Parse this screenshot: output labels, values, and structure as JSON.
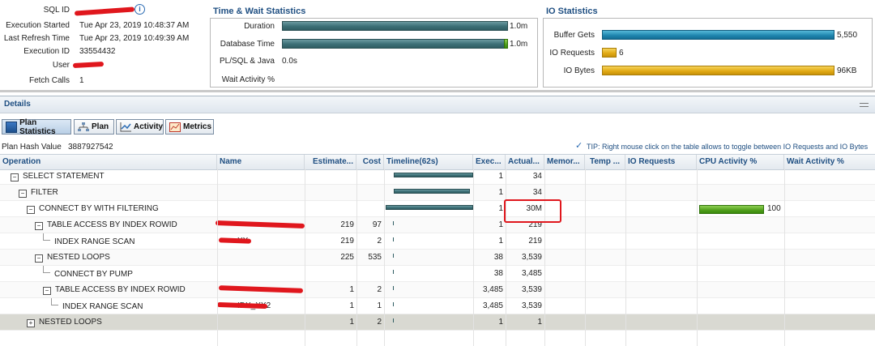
{
  "summary": {
    "sql_id_label": "SQL ID",
    "exec_started_label": "Execution Started",
    "exec_started": "Tue Apr 23, 2019 10:48:37 AM",
    "last_refresh_label": "Last Refresh Time",
    "last_refresh": "Tue Apr 23, 2019 10:49:39 AM",
    "exec_id_label": "Execution ID",
    "exec_id": "33554432",
    "user_label": "User",
    "fetch_calls_label": "Fetch Calls",
    "fetch_calls": "1"
  },
  "time_wait": {
    "title": "Time & Wait Statistics",
    "duration_label": "Duration",
    "duration_value": "1.0m",
    "db_time_label": "Database Time",
    "db_time_value": "1.0m",
    "plsql_label": "PL/SQL & Java",
    "plsql_value": "0.0s",
    "wait_label": "Wait Activity %"
  },
  "io": {
    "title": "IO Statistics",
    "buffer_gets_label": "Buffer Gets",
    "buffer_gets_value": "5,550",
    "io_requests_label": "IO Requests",
    "io_requests_value": "6",
    "io_bytes_label": "IO Bytes",
    "io_bytes_value": "96KB"
  },
  "details": {
    "title": "Details",
    "tabs": [
      "Plan Statistics",
      "Plan",
      "Activity",
      "Metrics"
    ],
    "plan_hash_label": "Plan Hash Value",
    "plan_hash": "3887927542",
    "tip": "TIP: Right mouse click on the table allows to toggle between IO Requests and IO Bytes"
  },
  "table": {
    "headers": [
      "Operation",
      "Name",
      "Estimate...",
      "Cost",
      "Timeline(62s)",
      "Exec...",
      "Actual...",
      "Memor...",
      "Temp ...",
      "IO Requests",
      "CPU Activity %",
      "Wait Activity %"
    ],
    "rows": [
      {
        "op": "SELECT STATEMENT",
        "name": "",
        "est": "",
        "cost": "",
        "exec": "1",
        "actual": "34",
        "cpu": ""
      },
      {
        "op": "FILTER",
        "name": "",
        "est": "",
        "cost": "",
        "exec": "1",
        "actual": "34",
        "cpu": ""
      },
      {
        "op": "CONNECT BY WITH FILTERING",
        "name": "",
        "est": "",
        "cost": "",
        "exec": "1",
        "actual": "30M",
        "cpu": "100"
      },
      {
        "op": "TABLE ACCESS BY INDEX ROWID",
        "name": "",
        "est": "219",
        "cost": "97",
        "exec": "1",
        "actual": "219",
        "cpu": ""
      },
      {
        "op": "INDEX RANGE SCAN",
        "name": "XX",
        "est": "219",
        "cost": "2",
        "exec": "1",
        "actual": "219",
        "cpu": ""
      },
      {
        "op": "NESTED LOOPS",
        "name": "",
        "est": "225",
        "cost": "535",
        "exec": "38",
        "actual": "3,539",
        "cpu": ""
      },
      {
        "op": "CONNECT BY PUMP",
        "name": "",
        "est": "",
        "cost": "",
        "exec": "38",
        "actual": "3,485",
        "cpu": ""
      },
      {
        "op": "TABLE ACCESS BY INDEX ROWID",
        "name": "",
        "est": "1",
        "cost": "2",
        "exec": "3,485",
        "actual": "3,539",
        "cpu": ""
      },
      {
        "op": "INDEX RANGE SCAN",
        "name": "IDX_XX2",
        "est": "1",
        "cost": "1",
        "exec": "3,485",
        "actual": "3,539",
        "cpu": ""
      },
      {
        "op": "NESTED LOOPS",
        "name": "",
        "est": "1",
        "cost": "2",
        "exec": "1",
        "actual": "1",
        "cpu": ""
      }
    ]
  },
  "colors": {
    "title_blue": "#1f4f82",
    "highlight_red": "#e0171d",
    "selected_row": "#d9d9d2"
  }
}
